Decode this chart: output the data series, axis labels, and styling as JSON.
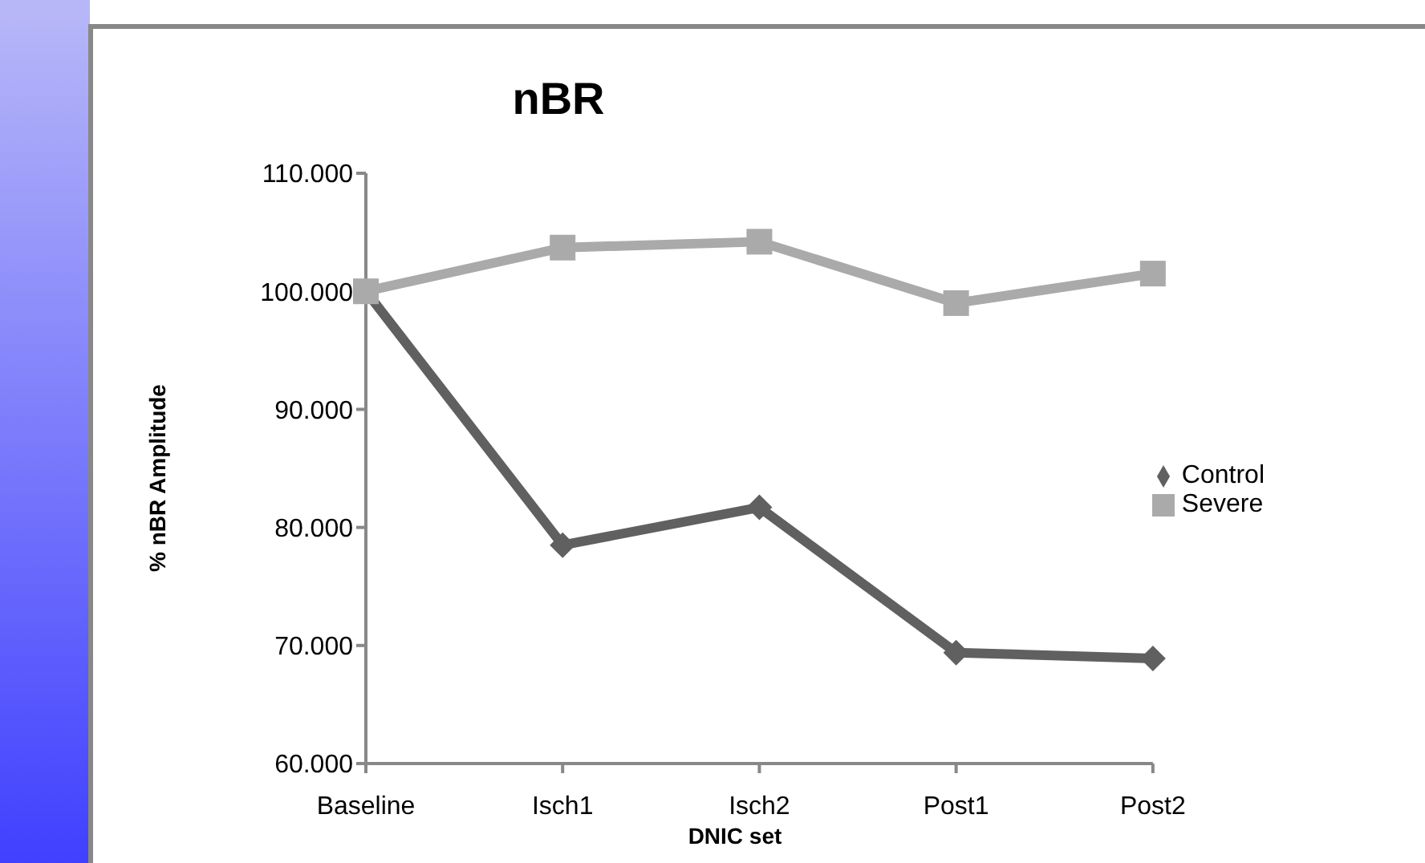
{
  "chart_data": {
    "type": "line",
    "title": "nBR",
    "xlabel": "DNIC set",
    "ylabel": "% nBR Amplitude",
    "categories": [
      "Baseline",
      "Isch1",
      "Isch2",
      "Post1",
      "Post2"
    ],
    "series": [
      {
        "name": "Control",
        "color": "#606060",
        "marker": "diamond",
        "values": [
          100,
          78.5,
          81.7,
          69.4,
          68.9
        ]
      },
      {
        "name": "Severe",
        "color": "#aaaaaa",
        "marker": "square",
        "values": [
          100,
          103.7,
          104.2,
          99.0,
          101.5
        ]
      }
    ],
    "ylim": [
      60,
      110
    ],
    "yticks": [
      {
        "value": 60,
        "label": "60.000"
      },
      {
        "value": 70,
        "label": "70.000"
      },
      {
        "value": 80,
        "label": "80.000"
      },
      {
        "value": 90,
        "label": "90.000"
      },
      {
        "value": 100,
        "label": "100.000"
      },
      {
        "value": 110,
        "label": "110.000"
      }
    ],
    "grid": false,
    "legend": "right",
    "line_style": "solid"
  }
}
